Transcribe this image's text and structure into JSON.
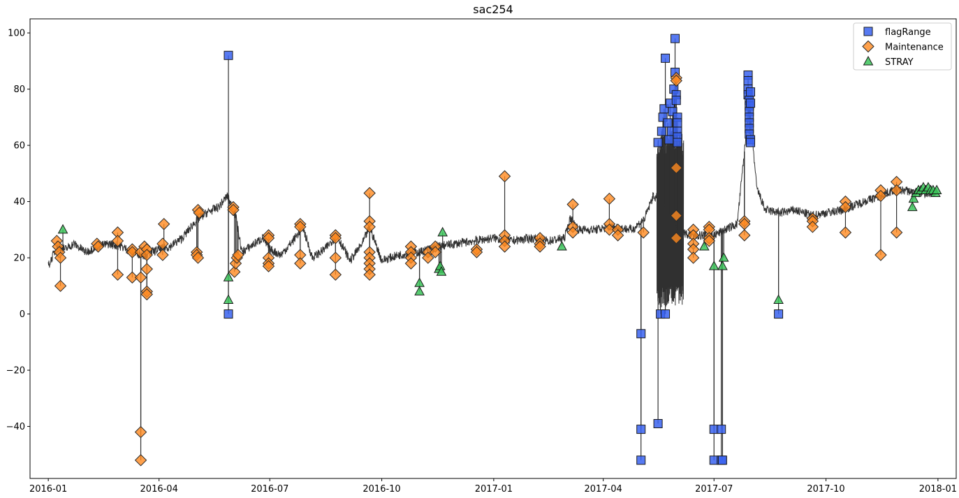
{
  "chart_data": {
    "type": "line",
    "title": "sac254",
    "xlabel": "",
    "ylabel": "",
    "x_axis": "date",
    "xlim": [
      "2015-12-17",
      "2018-01-16"
    ],
    "ylim": [
      -58.5,
      105
    ],
    "x_ticks": [
      "2016-01",
      "2016-04",
      "2016-07",
      "2016-10",
      "2017-01",
      "2017-04",
      "2017-07",
      "2017-10",
      "2018-01"
    ],
    "y_ticks": [
      100,
      80,
      60,
      40,
      20,
      0,
      -20,
      -40
    ],
    "grid": false,
    "legend_position": "top-right",
    "colors": {
      "line": "#303030",
      "flagRange": "#3a63f0",
      "Maintenance": "#ff8a1f",
      "STRAY": "#3cc45a"
    },
    "series": [
      {
        "type": "line",
        "approximate": true,
        "points": [
          [
            "2016-01-01",
            17
          ],
          [
            "2016-01-06",
            22
          ],
          [
            "2016-01-10",
            24
          ],
          [
            "2016-01-15",
            23
          ],
          [
            "2016-01-22",
            25
          ],
          [
            "2016-02-01",
            22
          ],
          [
            "2016-02-10",
            24
          ],
          [
            "2016-02-20",
            25
          ],
          [
            "2016-03-01",
            24
          ],
          [
            "2016-03-10",
            22
          ],
          [
            "2016-03-20",
            21
          ],
          [
            "2016-04-01",
            23
          ],
          [
            "2016-04-10",
            24
          ],
          [
            "2016-04-20",
            27
          ],
          [
            "2016-05-01",
            33
          ],
          [
            "2016-05-10",
            36
          ],
          [
            "2016-05-20",
            38
          ],
          [
            "2016-05-27",
            42
          ],
          [
            "2016-06-03",
            35
          ],
          [
            "2016-06-08",
            22
          ],
          [
            "2016-06-15",
            24
          ],
          [
            "2016-06-25",
            27
          ],
          [
            "2016-07-01",
            23
          ],
          [
            "2016-07-10",
            21
          ],
          [
            "2016-07-20",
            26
          ],
          [
            "2016-07-28",
            31
          ],
          [
            "2016-08-05",
            20
          ],
          [
            "2016-08-15",
            23
          ],
          [
            "2016-08-25",
            28
          ],
          [
            "2016-09-05",
            19
          ],
          [
            "2016-09-15",
            25
          ],
          [
            "2016-09-21",
            31
          ],
          [
            "2016-10-01",
            19
          ],
          [
            "2016-10-15",
            21
          ],
          [
            "2016-11-01",
            22
          ],
          [
            "2016-11-15",
            24
          ],
          [
            "2016-12-01",
            25
          ],
          [
            "2016-12-15",
            26
          ],
          [
            "2017-01-01",
            27
          ],
          [
            "2017-01-15",
            26
          ],
          [
            "2017-02-01",
            27
          ],
          [
            "2017-02-15",
            26
          ],
          [
            "2017-02-28",
            27
          ],
          [
            "2017-03-05",
            34
          ],
          [
            "2017-03-12",
            30
          ],
          [
            "2017-03-25",
            30
          ],
          [
            "2017-04-08",
            31
          ],
          [
            "2017-04-25",
            30
          ],
          [
            "2017-05-05",
            34
          ],
          [
            "2017-05-12",
            42
          ],
          [
            "2017-05-20",
            40
          ],
          [
            "2017-06-01",
            30
          ],
          [
            "2017-06-10",
            28
          ],
          [
            "2017-06-20",
            28
          ],
          [
            "2017-07-01",
            28
          ],
          [
            "2017-07-10",
            30
          ],
          [
            "2017-07-20",
            32
          ],
          [
            "2017-07-30",
            75
          ],
          [
            "2017-08-05",
            45
          ],
          [
            "2017-08-12",
            37
          ],
          [
            "2017-08-25",
            36
          ],
          [
            "2017-09-05",
            37
          ],
          [
            "2017-09-20",
            35
          ],
          [
            "2017-10-01",
            36
          ],
          [
            "2017-10-15",
            37
          ],
          [
            "2017-11-01",
            40
          ],
          [
            "2017-11-15",
            42
          ],
          [
            "2017-11-25",
            44
          ],
          [
            "2017-12-05",
            44
          ],
          [
            "2017-12-15",
            43
          ],
          [
            "2017-12-31",
            43
          ]
        ]
      },
      {
        "type": "line",
        "name": "",
        "approximate": true,
        "oscillating_band": {
          "x_range": [
            "2017-05-15",
            "2017-06-06"
          ],
          "y_low": 2,
          "y_high": 66
        }
      },
      {
        "name": "flagRange",
        "type": "scatter",
        "marker": "square",
        "points": [
          [
            "2016-05-28",
            92
          ],
          [
            "2016-05-28",
            0
          ],
          [
            "2017-05-02",
            -7
          ],
          [
            "2017-05-02",
            -41
          ],
          [
            "2017-05-02",
            -52
          ],
          [
            "2017-05-16",
            -39
          ],
          [
            "2017-05-16",
            61
          ],
          [
            "2017-05-18",
            0
          ],
          [
            "2017-05-19",
            65
          ],
          [
            "2017-05-20",
            70
          ],
          [
            "2017-05-21",
            73
          ],
          [
            "2017-05-22",
            0
          ],
          [
            "2017-05-22",
            91
          ],
          [
            "2017-05-24",
            68
          ],
          [
            "2017-05-25",
            62
          ],
          [
            "2017-05-26",
            75
          ],
          [
            "2017-05-27",
            65
          ],
          [
            "2017-05-28",
            72
          ],
          [
            "2017-05-29",
            80
          ],
          [
            "2017-05-30",
            98
          ],
          [
            "2017-05-30",
            86
          ],
          [
            "2017-05-31",
            78
          ],
          [
            "2017-05-31",
            76
          ],
          [
            "2017-06-01",
            70
          ],
          [
            "2017-06-01",
            68
          ],
          [
            "2017-06-01",
            65
          ],
          [
            "2017-06-01",
            63
          ],
          [
            "2017-06-01",
            61
          ],
          [
            "2017-07-01",
            -41
          ],
          [
            "2017-07-01",
            -52
          ],
          [
            "2017-07-07",
            -41
          ],
          [
            "2017-07-07",
            -52
          ],
          [
            "2017-07-08",
            -52
          ],
          [
            "2017-07-29",
            85
          ],
          [
            "2017-07-29",
            83
          ],
          [
            "2017-07-29",
            80
          ],
          [
            "2017-07-29",
            78
          ],
          [
            "2017-07-30",
            76
          ],
          [
            "2017-07-30",
            74
          ],
          [
            "2017-07-30",
            72
          ],
          [
            "2017-07-30",
            70
          ],
          [
            "2017-07-30",
            68
          ],
          [
            "2017-07-30",
            66
          ],
          [
            "2017-07-30",
            64
          ],
          [
            "2017-07-31",
            62
          ],
          [
            "2017-07-31",
            61
          ],
          [
            "2017-07-31",
            79
          ],
          [
            "2017-07-31",
            75
          ],
          [
            "2017-08-23",
            0
          ]
        ]
      },
      {
        "name": "Maintenance",
        "type": "scatter",
        "marker": "diamond",
        "points": [
          [
            "2016-01-08",
            26
          ],
          [
            "2016-01-09",
            24
          ],
          [
            "2016-01-10",
            22
          ],
          [
            "2016-01-11",
            20
          ],
          [
            "2016-01-11",
            10
          ],
          [
            "2016-02-10",
            25
          ],
          [
            "2016-02-11",
            24
          ],
          [
            "2016-02-27",
            29
          ],
          [
            "2016-02-27",
            26
          ],
          [
            "2016-02-27",
            14
          ],
          [
            "2016-03-10",
            23
          ],
          [
            "2016-03-10",
            22
          ],
          [
            "2016-03-10",
            13
          ],
          [
            "2016-03-17",
            -42
          ],
          [
            "2016-03-17",
            -52
          ],
          [
            "2016-03-17",
            22
          ],
          [
            "2016-03-17",
            13
          ],
          [
            "2016-03-20",
            24
          ],
          [
            "2016-03-22",
            23
          ],
          [
            "2016-03-22",
            21
          ],
          [
            "2016-03-22",
            16
          ],
          [
            "2016-03-22",
            8
          ],
          [
            "2016-03-22",
            7
          ],
          [
            "2016-04-04",
            25
          ],
          [
            "2016-04-04",
            21
          ],
          [
            "2016-04-05",
            32
          ],
          [
            "2016-05-02",
            22
          ],
          [
            "2016-05-02",
            21
          ],
          [
            "2016-05-03",
            20
          ],
          [
            "2016-05-03",
            37
          ],
          [
            "2016-05-04",
            36
          ],
          [
            "2016-06-01",
            38
          ],
          [
            "2016-06-01",
            37
          ],
          [
            "2016-06-02",
            15
          ],
          [
            "2016-06-03",
            18
          ],
          [
            "2016-06-04",
            20
          ],
          [
            "2016-06-05",
            21
          ],
          [
            "2016-06-30",
            28
          ],
          [
            "2016-06-30",
            27
          ],
          [
            "2016-06-30",
            20
          ],
          [
            "2016-06-30",
            18
          ],
          [
            "2016-06-30",
            17
          ],
          [
            "2016-07-26",
            32
          ],
          [
            "2016-07-26",
            31
          ],
          [
            "2016-07-26",
            21
          ],
          [
            "2016-07-26",
            18
          ],
          [
            "2016-08-24",
            28
          ],
          [
            "2016-08-24",
            27
          ],
          [
            "2016-08-24",
            20
          ],
          [
            "2016-08-24",
            14
          ],
          [
            "2016-09-21",
            43
          ],
          [
            "2016-09-21",
            33
          ],
          [
            "2016-09-21",
            31
          ],
          [
            "2016-09-21",
            22
          ],
          [
            "2016-09-21",
            20
          ],
          [
            "2016-09-21",
            18
          ],
          [
            "2016-09-21",
            16
          ],
          [
            "2016-09-21",
            14
          ],
          [
            "2016-10-25",
            24
          ],
          [
            "2016-10-25",
            22
          ],
          [
            "2016-10-25",
            20
          ],
          [
            "2016-10-25",
            18
          ],
          [
            "2016-11-08",
            22
          ],
          [
            "2016-11-08",
            20
          ],
          [
            "2016-11-14",
            24
          ],
          [
            "2016-11-14",
            22
          ],
          [
            "2016-12-18",
            23
          ],
          [
            "2016-12-18",
            22
          ],
          [
            "2017-01-10",
            49
          ],
          [
            "2017-01-10",
            28
          ],
          [
            "2017-01-10",
            26
          ],
          [
            "2017-01-10",
            24
          ],
          [
            "2017-02-08",
            27
          ],
          [
            "2017-02-08",
            25
          ],
          [
            "2017-02-08",
            24
          ],
          [
            "2017-03-07",
            39
          ],
          [
            "2017-03-07",
            31
          ],
          [
            "2017-03-07",
            29
          ],
          [
            "2017-04-06",
            41
          ],
          [
            "2017-04-06",
            32
          ],
          [
            "2017-04-06",
            30
          ],
          [
            "2017-04-13",
            30
          ],
          [
            "2017-04-13",
            28
          ],
          [
            "2017-05-04",
            29
          ],
          [
            "2017-05-31",
            84
          ],
          [
            "2017-05-31",
            83
          ],
          [
            "2017-05-31",
            52
          ],
          [
            "2017-05-31",
            35
          ],
          [
            "2017-05-31",
            27
          ],
          [
            "2017-06-14",
            30
          ],
          [
            "2017-06-14",
            28
          ],
          [
            "2017-06-14",
            25
          ],
          [
            "2017-06-14",
            23
          ],
          [
            "2017-06-14",
            20
          ],
          [
            "2017-06-27",
            31
          ],
          [
            "2017-06-27",
            30
          ],
          [
            "2017-06-27",
            27
          ],
          [
            "2017-06-27",
            26
          ],
          [
            "2017-07-26",
            33
          ],
          [
            "2017-07-26",
            32
          ],
          [
            "2017-07-26",
            28
          ],
          [
            "2017-09-20",
            34
          ],
          [
            "2017-09-20",
            33
          ],
          [
            "2017-09-20",
            31
          ],
          [
            "2017-10-17",
            40
          ],
          [
            "2017-10-17",
            38
          ],
          [
            "2017-10-17",
            29
          ],
          [
            "2017-11-15",
            44
          ],
          [
            "2017-11-15",
            42
          ],
          [
            "2017-11-15",
            21
          ],
          [
            "2017-11-28",
            47
          ],
          [
            "2017-11-28",
            44
          ],
          [
            "2017-11-28",
            29
          ]
        ]
      },
      {
        "name": "STRAY",
        "type": "scatter",
        "marker": "triangle",
        "points": [
          [
            "2016-01-13",
            30
          ],
          [
            "2016-05-28",
            13
          ],
          [
            "2016-05-28",
            5
          ],
          [
            "2016-11-01",
            11
          ],
          [
            "2016-11-01",
            8
          ],
          [
            "2016-11-17",
            16
          ],
          [
            "2016-11-18",
            17
          ],
          [
            "2016-11-19",
            15
          ],
          [
            "2016-11-20",
            29
          ],
          [
            "2017-02-26",
            24
          ],
          [
            "2017-06-23",
            24
          ],
          [
            "2017-07-01",
            17
          ],
          [
            "2017-07-08",
            17
          ],
          [
            "2017-07-09",
            20
          ],
          [
            "2017-08-23",
            5
          ],
          [
            "2017-12-11",
            38
          ],
          [
            "2017-12-12",
            41
          ],
          [
            "2017-12-14",
            43
          ],
          [
            "2017-12-16",
            44
          ],
          [
            "2017-12-18",
            44
          ],
          [
            "2017-12-20",
            45
          ],
          [
            "2017-12-22",
            44
          ],
          [
            "2017-12-24",
            45
          ],
          [
            "2017-12-26",
            44
          ],
          [
            "2017-12-28",
            44
          ],
          [
            "2017-12-30",
            43
          ],
          [
            "2017-12-31",
            44
          ]
        ]
      }
    ],
    "legend": [
      {
        "label": "flagRange",
        "marker": "square"
      },
      {
        "label": "Maintenance",
        "marker": "diamond"
      },
      {
        "label": "STRAY",
        "marker": "triangle"
      }
    ]
  }
}
